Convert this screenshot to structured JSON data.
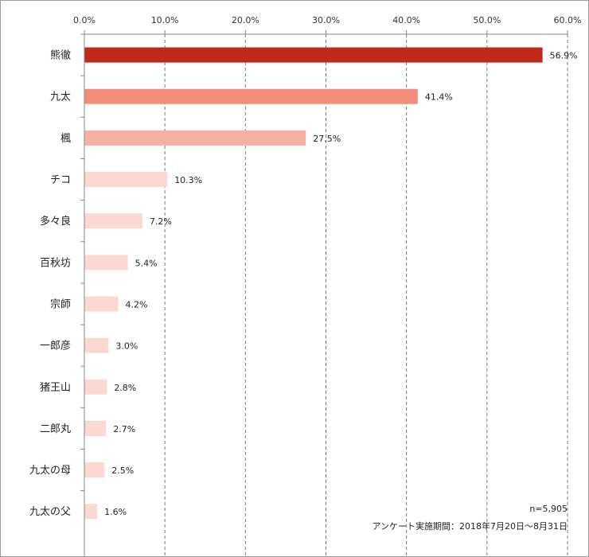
{
  "chart_data": {
    "type": "bar",
    "orientation": "horizontal",
    "categories": [
      "熊徹",
      "九太",
      "楓",
      "チコ",
      "多々良",
      "百秋坊",
      "宗師",
      "一郎彦",
      "猪王山",
      "二郎丸",
      "九太の母",
      "九太の父"
    ],
    "values": [
      56.9,
      41.4,
      27.5,
      10.3,
      7.2,
      5.4,
      4.2,
      3.0,
      2.8,
      2.7,
      2.5,
      1.6
    ],
    "value_labels": [
      "56.9%",
      "41.4%",
      "27.5%",
      "10.3%",
      "7.2%",
      "5.4%",
      "4.2%",
      "3.0%",
      "2.8%",
      "2.7%",
      "2.5%",
      "1.6%"
    ],
    "bar_colors": [
      "#c0281c",
      "#f48c7a",
      "#f7b0a4",
      "#fbd9d2",
      "#fbd9d2",
      "#fbd9d2",
      "#fbd9d2",
      "#fbd9d2",
      "#fbd9d2",
      "#fbd9d2",
      "#fbd9d2",
      "#fbd9d2"
    ],
    "xlim": [
      0,
      60
    ],
    "xticks": [
      0,
      10,
      20,
      30,
      40,
      50,
      60
    ],
    "xtick_labels": [
      "0.0%",
      "10.0%",
      "20.0%",
      "30.0%",
      "40.0%",
      "50.0%",
      "60.0%"
    ],
    "axis_position": "top",
    "grid": true,
    "title": "",
    "xlabel": "",
    "ylabel": ""
  },
  "notes": {
    "sample_size": "n=5,905",
    "survey_period": "アンケート実施期間：2018年7月20日～8月31日"
  },
  "colors": {
    "axis": "#888888",
    "grid": "#7a7a7a",
    "frame": "#9a9a9a"
  }
}
